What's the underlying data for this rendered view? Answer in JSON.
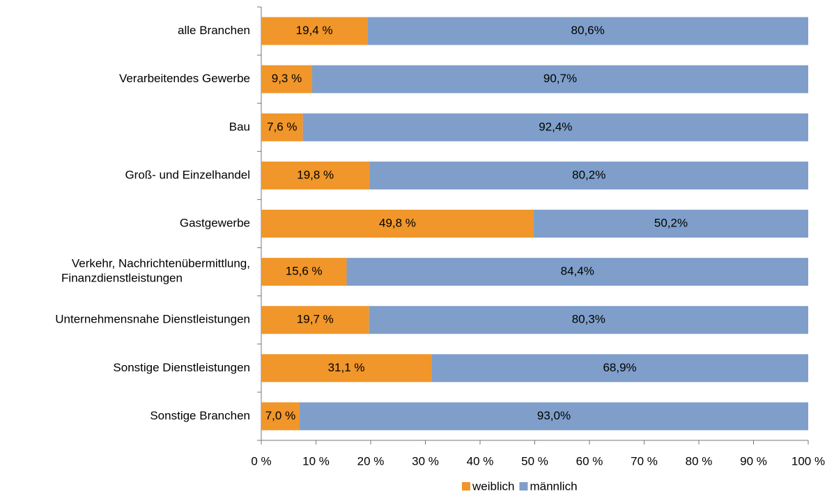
{
  "chart_data": {
    "type": "stacked-bar-horizontal",
    "categories": [
      "alle Branchen",
      "Verarbeitendes Gewerbe",
      "Bau",
      "Groß- und Einzelhandel",
      "Gastgewerbe",
      "Verkehr, Nachrichtenübermittlung,\nFinanzdienstleistungen",
      "Unternehmensnahe Dienstleistungen",
      "Sonstige Dienstleistungen",
      "Sonstige Branchen"
    ],
    "series": [
      {
        "name": "weiblich",
        "color": "#f0962a",
        "values": [
          19.4,
          9.3,
          7.6,
          19.8,
          49.8,
          15.6,
          19.7,
          31.1,
          7.0
        ],
        "value_labels": [
          "19,4 %",
          "9,3 %",
          "7,6 %",
          "19,8 %",
          "49,8 %",
          "15,6 %",
          "19,7 %",
          "31,1 %",
          "7,0 %"
        ]
      },
      {
        "name": "männlich",
        "color": "#7f9fca",
        "values": [
          80.6,
          90.7,
          92.4,
          80.2,
          50.2,
          84.4,
          80.3,
          68.9,
          93.0
        ],
        "value_labels": [
          "80,6%",
          "90,7%",
          "92,4%",
          "80,2%",
          "50,2%",
          "84,4%",
          "80,3%",
          "68,9%",
          "93,0%"
        ]
      }
    ],
    "xlim": [
      0,
      100
    ],
    "xticks": [
      {
        "value": 0,
        "label": "0 %"
      },
      {
        "value": 10,
        "label": "10 %"
      },
      {
        "value": 20,
        "label": "20 %"
      },
      {
        "value": 30,
        "label": "30 %"
      },
      {
        "value": 40,
        "label": "40 %"
      },
      {
        "value": 50,
        "label": "50 %"
      },
      {
        "value": 60,
        "label": "60 %"
      },
      {
        "value": 70,
        "label": "70 %"
      },
      {
        "value": 80,
        "label": "80 %"
      },
      {
        "value": 90,
        "label": "90 %"
      },
      {
        "value": 100,
        "label": "100 %"
      }
    ],
    "legend": "bottom"
  }
}
